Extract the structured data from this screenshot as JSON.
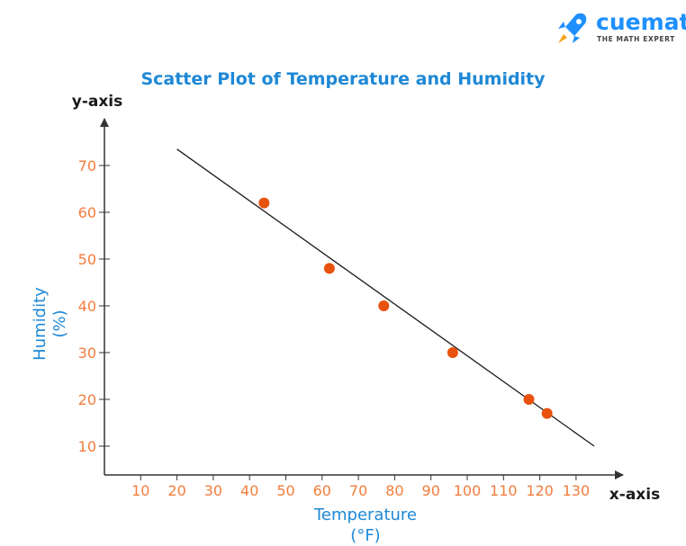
{
  "brand": {
    "name": "cuemath",
    "tagline": "THE MATH EXPERT",
    "color": "#1e90ff"
  },
  "chart_data": {
    "type": "scatter",
    "title": "Scatter Plot of Temperature and Humidity",
    "x_axis_name": "x-axis",
    "y_axis_name": "y-axis",
    "xlabel_line1": "Temperature",
    "xlabel_line2": "(°F)",
    "ylabel_line1": "Humidity",
    "ylabel_line2": "(%)",
    "xlim": [
      0,
      140
    ],
    "ylim": [
      0,
      80
    ],
    "x_ticks": [
      10,
      20,
      30,
      40,
      50,
      60,
      70,
      80,
      90,
      100,
      110,
      120,
      130
    ],
    "y_ticks": [
      10,
      20,
      30,
      40,
      50,
      60,
      70
    ],
    "points": [
      {
        "x": 44,
        "y": 62
      },
      {
        "x": 62,
        "y": 48
      },
      {
        "x": 77,
        "y": 40
      },
      {
        "x": 96,
        "y": 30
      },
      {
        "x": 117,
        "y": 20
      },
      {
        "x": 122,
        "y": 17
      }
    ],
    "trend_line": {
      "x1": 20,
      "y1": 73.5,
      "x2": 135,
      "y2": 10
    },
    "grid": false,
    "colors": {
      "title": "#1e88d6",
      "axis_title": "#1e88d6",
      "tick_label": "#f47c3c",
      "point": "#e8520e",
      "axis": "#333333",
      "line": "#1a1a1a"
    }
  }
}
